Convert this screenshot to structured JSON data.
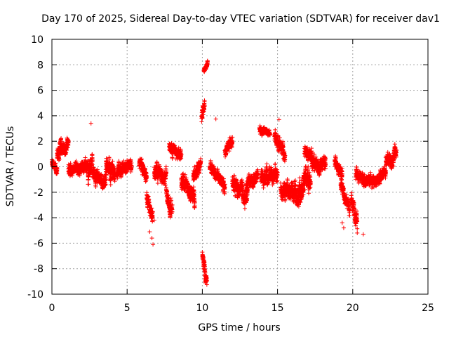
{
  "chart_data": {
    "type": "scatter",
    "title": "Day 170 of 2025, Sidereal Day-to-day VTEC variation (SDTVAR) for receiver dav1",
    "xlabel": "GPS time / hours",
    "ylabel": "SDTVAR / TECUs",
    "xlim": [
      0,
      25
    ],
    "ylim": [
      -10,
      10
    ],
    "xticks": [
      0,
      5,
      10,
      15,
      20,
      25
    ],
    "yticks": [
      -10,
      -8,
      -6,
      -4,
      -2,
      0,
      2,
      4,
      6,
      8,
      10
    ],
    "grid": true,
    "marker": "+",
    "color": "#ff0000",
    "segments": [
      {
        "x": [
          0.0,
          0.35
        ],
        "y": [
          0.5,
          -0.4
        ],
        "spread": 0.6
      },
      {
        "x": [
          0.35,
          1.1
        ],
        "y": [
          1.2,
          1.8
        ],
        "spread": 1.1
      },
      {
        "x": [
          1.1,
          2.4
        ],
        "y": [
          -0.2,
          0.1
        ],
        "spread": 0.9
      },
      {
        "x": [
          2.4,
          2.7
        ],
        "y": [
          -0.8,
          0.6
        ],
        "spread": 1.4
      },
      {
        "x": [
          2.7,
          3.6
        ],
        "y": [
          -0.6,
          -1.2
        ],
        "spread": 1.1
      },
      {
        "x": [
          3.6,
          4.2
        ],
        "y": [
          0.3,
          -0.6
        ],
        "spread": 1.3
      },
      {
        "x": [
          4.3,
          5.3
        ],
        "y": [
          -0.4,
          0.4
        ],
        "spread": 1.0
      },
      {
        "x": [
          5.8,
          6.3
        ],
        "y": [
          0.2,
          -0.8
        ],
        "spread": 0.9
      },
      {
        "x": [
          6.3,
          6.7
        ],
        "y": [
          -2.5,
          -3.8
        ],
        "spread": 1.0
      },
      {
        "x": [
          6.8,
          7.6
        ],
        "y": [
          -0.5,
          -0.8
        ],
        "spread": 1.1
      },
      {
        "x": [
          7.6,
          8.0
        ],
        "y": [
          -2.0,
          -3.5
        ],
        "spread": 1.2
      },
      {
        "x": [
          7.8,
          8.6
        ],
        "y": [
          1.5,
          0.8
        ],
        "spread": 0.9
      },
      {
        "x": [
          8.6,
          9.5
        ],
        "y": [
          -1.0,
          -2.5
        ],
        "spread": 1.3
      },
      {
        "x": [
          9.4,
          9.9
        ],
        "y": [
          -0.8,
          0.2
        ],
        "spread": 1.0
      },
      {
        "x": [
          9.95,
          10.15
        ],
        "y": [
          3.5,
          5.0
        ],
        "spread": 1.0
      },
      {
        "x": [
          10.1,
          10.35
        ],
        "y": [
          7.6,
          8.2
        ],
        "spread": 0.4
      },
      {
        "x": [
          10.0,
          10.3
        ],
        "y": [
          -7.0,
          -9.0
        ],
        "spread": 0.9
      },
      {
        "x": [
          10.5,
          11.5
        ],
        "y": [
          0.0,
          -1.5
        ],
        "spread": 0.9
      },
      {
        "x": [
          11.5,
          12.0
        ],
        "y": [
          1.0,
          2.0
        ],
        "spread": 0.8
      },
      {
        "x": [
          12.0,
          13.0
        ],
        "y": [
          -1.0,
          -2.5
        ],
        "spread": 1.2
      },
      {
        "x": [
          12.9,
          13.7
        ],
        "y": [
          -1.5,
          -0.8
        ],
        "spread": 1.0
      },
      {
        "x": [
          13.8,
          14.5
        ],
        "y": [
          3.0,
          2.6
        ],
        "spread": 0.5
      },
      {
        "x": [
          13.9,
          15.0
        ],
        "y": [
          -1.0,
          -0.4
        ],
        "spread": 1.2
      },
      {
        "x": [
          14.8,
          15.5
        ],
        "y": [
          2.5,
          1.0
        ],
        "spread": 1.0
      },
      {
        "x": [
          15.2,
          16.6
        ],
        "y": [
          -1.5,
          -2.6
        ],
        "spread": 1.4
      },
      {
        "x": [
          16.4,
          17.2
        ],
        "y": [
          -2.2,
          -0.8
        ],
        "spread": 1.5
      },
      {
        "x": [
          16.8,
          17.6
        ],
        "y": [
          1.2,
          0.2
        ],
        "spread": 1.0
      },
      {
        "x": [
          17.6,
          18.2
        ],
        "y": [
          -0.2,
          0.4
        ],
        "spread": 1.0
      },
      {
        "x": [
          18.8,
          19.3
        ],
        "y": [
          0.2,
          -0.8
        ],
        "spread": 1.0
      },
      {
        "x": [
          19.2,
          19.8
        ],
        "y": [
          -1.5,
          -3.5
        ],
        "spread": 1.0
      },
      {
        "x": [
          19.9,
          20.3
        ],
        "y": [
          -2.5,
          -4.5
        ],
        "spread": 1.1
      },
      {
        "x": [
          20.2,
          21.2
        ],
        "y": [
          -0.8,
          -1.2
        ],
        "spread": 0.9
      },
      {
        "x": [
          21.2,
          22.2
        ],
        "y": [
          -1.2,
          -0.5
        ],
        "spread": 0.8
      },
      {
        "x": [
          22.2,
          22.9
        ],
        "y": [
          0.5,
          1.0
        ],
        "spread": 0.9
      }
    ],
    "points_per_hour": 260,
    "extra_points": [
      {
        "x": 6.5,
        "y": -5.1
      },
      {
        "x": 6.65,
        "y": -5.6
      },
      {
        "x": 6.72,
        "y": -6.1
      },
      {
        "x": 6.8,
        "y": -4.2
      },
      {
        "x": 10.9,
        "y": 3.75
      },
      {
        "x": 11.9,
        "y": 2.3
      },
      {
        "x": 19.3,
        "y": -4.4
      },
      {
        "x": 19.4,
        "y": -4.8
      },
      {
        "x": 20.3,
        "y": -5.2
      },
      {
        "x": 20.7,
        "y": -5.3
      },
      {
        "x": 2.6,
        "y": 3.4
      },
      {
        "x": 15.1,
        "y": 3.7
      }
    ]
  }
}
